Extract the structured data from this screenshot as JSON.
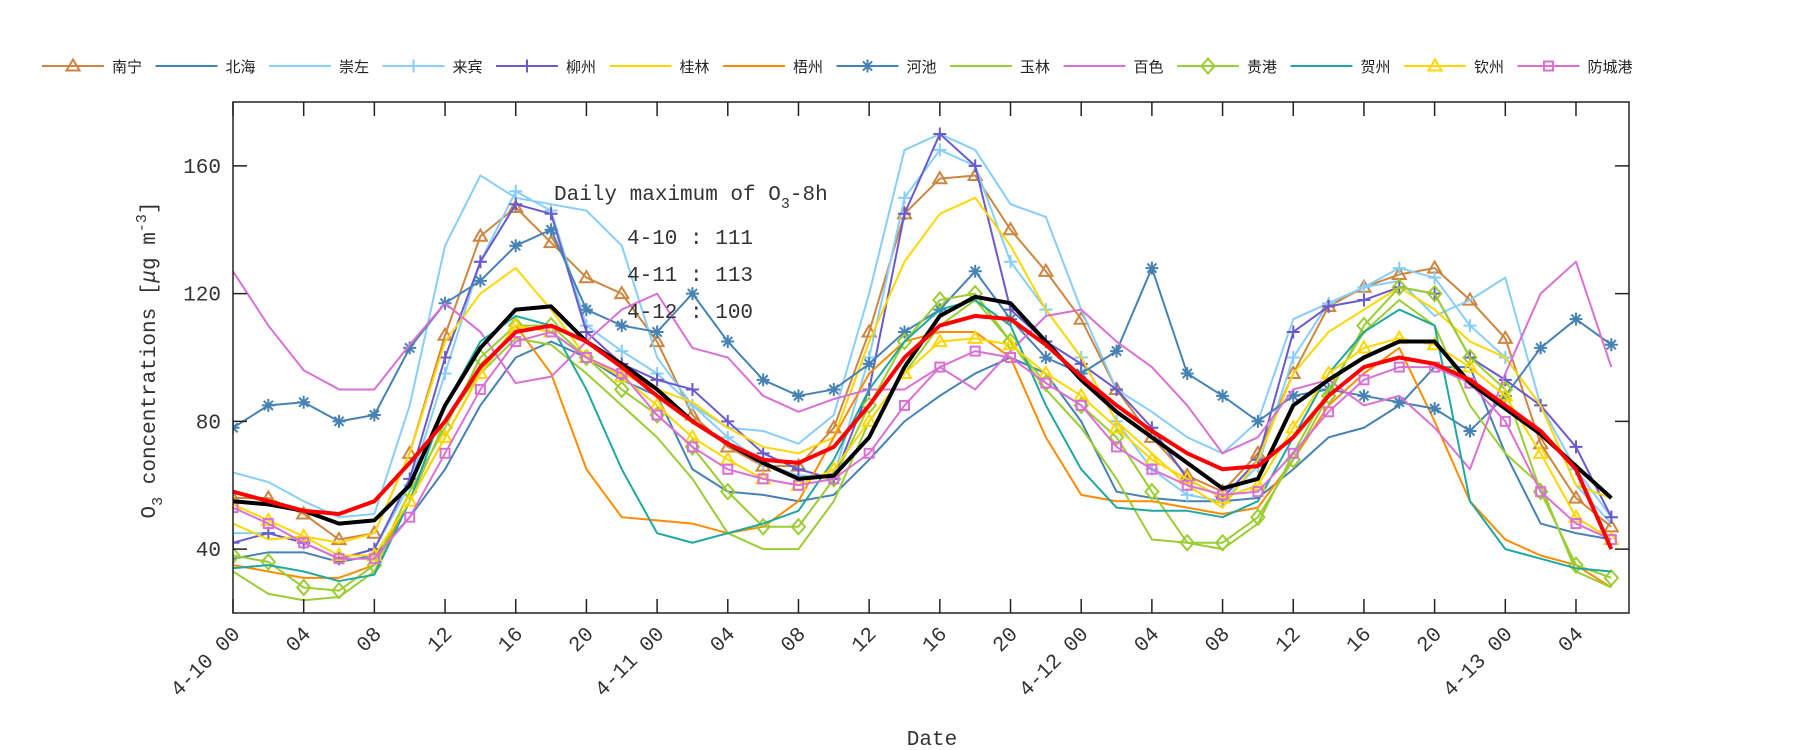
{
  "chart_data": {
    "type": "line",
    "xlabel": "Date",
    "ylabel": "O3 concentrations [μg m-3]",
    "ylabel_parts": {
      "main": "O",
      "sub": "3",
      "rest": " concentrations [",
      "mu": "μ",
      "unit": "g m",
      "sup": "-3",
      "close": "]"
    },
    "xlim": [
      0,
      79
    ],
    "ylim": [
      20,
      180
    ],
    "yticks": [
      40,
      80,
      120,
      160
    ],
    "xticks": [
      0,
      4,
      8,
      12,
      16,
      20,
      24,
      28,
      32,
      36,
      40,
      44,
      48,
      52,
      56,
      60,
      64,
      68,
      72,
      76
    ],
    "xtick_labels": [
      "4-10 00",
      "04",
      "08",
      "12",
      "16",
      "20",
      "4-11 00",
      "04",
      "08",
      "12",
      "16",
      "20",
      "4-12 00",
      "04",
      "08",
      "12",
      "16",
      "20",
      "4-13 00",
      "04"
    ],
    "x_hours": [
      0,
      2,
      4,
      6,
      8,
      10,
      12,
      14,
      16,
      18,
      20,
      22,
      24,
      26,
      28,
      30,
      32,
      34,
      36,
      38,
      40,
      42,
      44,
      46,
      48,
      50,
      52,
      54,
      56,
      58,
      60,
      62,
      64,
      66,
      68,
      70,
      72,
      74,
      76,
      78
    ],
    "grid": false,
    "legend_position": "top",
    "annotation": {
      "title": "Daily maximum of O",
      "title_sub": "3",
      "title_rest": "-8h",
      "lines": [
        "4-10 : 111",
        "4-11 : 113",
        "4-12 : 100"
      ]
    },
    "series": [
      {
        "name": "南宁",
        "color": "#cd853f",
        "marker": "triangle",
        "values": [
          56,
          56,
          51,
          43,
          45,
          70,
          107,
          138,
          147,
          136,
          125,
          120,
          105,
          82,
          72,
          66,
          66,
          78,
          108,
          145,
          156,
          157,
          140,
          127,
          112,
          90,
          75,
          63,
          58,
          70,
          95,
          116,
          122,
          126,
          128,
          118,
          106,
          73,
          56,
          47
        ]
      },
      {
        "name": "北海",
        "color": "#4682b4",
        "marker": "none",
        "values": [
          37,
          39,
          39,
          36,
          38,
          50,
          65,
          85,
          100,
          105,
          100,
          93,
          88,
          65,
          58,
          57,
          55,
          57,
          68,
          80,
          88,
          95,
          100,
          95,
          80,
          58,
          56,
          55,
          55,
          56,
          65,
          75,
          78,
          85,
          97,
          97,
          70,
          48,
          45,
          43
        ]
      },
      {
        "name": "崇左",
        "color": "#87cefa",
        "marker": "none",
        "values": [
          64,
          61,
          55,
          50,
          51,
          85,
          135,
          157,
          150,
          148,
          146,
          135,
          100,
          85,
          78,
          77,
          73,
          82,
          120,
          165,
          170,
          165,
          148,
          144,
          115,
          90,
          83,
          75,
          70,
          80,
          112,
          117,
          122,
          124,
          113,
          118,
          125,
          85,
          60,
          48
        ]
      },
      {
        "name": "来宾",
        "color": "#87cefa",
        "marker": "plus",
        "values": [
          45,
          45,
          42,
          37,
          40,
          60,
          95,
          130,
          152,
          146,
          110,
          102,
          95,
          85,
          75,
          67,
          63,
          63,
          100,
          150,
          165,
          160,
          130,
          115,
          100,
          80,
          65,
          57,
          55,
          66,
          100,
          117,
          122,
          128,
          125,
          110,
          100,
          85,
          65,
          50
        ]
      },
      {
        "name": "柳州",
        "color": "#6a5acd",
        "marker": "plus",
        "values": [
          42,
          45,
          42,
          37,
          40,
          62,
          100,
          130,
          148,
          145,
          108,
          98,
          93,
          90,
          80,
          70,
          65,
          62,
          90,
          145,
          170,
          160,
          115,
          105,
          98,
          90,
          78,
          62,
          56,
          68,
          108,
          116,
          118,
          122,
          120,
          100,
          93,
          85,
          72,
          50
        ]
      },
      {
        "name": "桂林",
        "color": "#ffd700",
        "marker": "none",
        "values": [
          48,
          43,
          44,
          42,
          45,
          70,
          105,
          120,
          128,
          115,
          100,
          95,
          90,
          86,
          78,
          72,
          70,
          75,
          105,
          130,
          145,
          150,
          135,
          115,
          100,
          80,
          70,
          60,
          53,
          68,
          95,
          108,
          115,
          122,
          115,
          105,
          100,
          85,
          60,
          56
        ]
      },
      {
        "name": "梧州",
        "color": "#ff8c00",
        "marker": "none",
        "values": [
          35,
          33,
          31,
          31,
          35,
          55,
          75,
          95,
          110,
          95,
          65,
          50,
          49,
          48,
          45,
          47,
          55,
          75,
          95,
          105,
          108,
          108,
          100,
          75,
          57,
          55,
          55,
          53,
          51,
          53,
          68,
          85,
          95,
          103,
          80,
          55,
          43,
          38,
          35,
          28
        ]
      },
      {
        "name": "河池",
        "color": "#4682b4",
        "marker": "asterisk",
        "values": [
          78,
          85,
          86,
          80,
          82,
          103,
          117,
          124,
          135,
          140,
          115,
          110,
          108,
          120,
          105,
          93,
          88,
          90,
          98,
          108,
          115,
          127,
          112,
          100,
          95,
          102,
          128,
          95,
          88,
          80,
          88,
          90,
          88,
          86,
          84,
          77,
          88,
          103,
          112,
          104
        ]
      },
      {
        "name": "玉林",
        "color": "#9acd32",
        "marker": "none",
        "values": [
          33,
          26,
          24,
          25,
          33,
          55,
          80,
          95,
          106,
          104,
          95,
          85,
          75,
          62,
          45,
          40,
          40,
          55,
          80,
          95,
          110,
          118,
          105,
          90,
          78,
          62,
          43,
          42,
          40,
          48,
          70,
          90,
          108,
          118,
          110,
          85,
          70,
          60,
          33,
          28
        ]
      },
      {
        "name": "百色",
        "color": "#da70d6",
        "marker": "none",
        "values": [
          127,
          110,
          96,
          90,
          90,
          104,
          117,
          108,
          92,
          94,
          105,
          115,
          120,
          103,
          100,
          88,
          83,
          87,
          90,
          90,
          97,
          90,
          102,
          113,
          115,
          105,
          97,
          85,
          70,
          75,
          90,
          93,
          85,
          88,
          78,
          65,
          95,
          120,
          130,
          97
        ]
      },
      {
        "name": "贵港",
        "color": "#9acd32",
        "marker": "diamond",
        "values": [
          38,
          36,
          28,
          27,
          35,
          58,
          78,
          100,
          110,
          110,
          100,
          90,
          82,
          72,
          58,
          47,
          47,
          62,
          85,
          105,
          118,
          120,
          105,
          92,
          85,
          75,
          58,
          42,
          42,
          50,
          68,
          88,
          110,
          122,
          120,
          100,
          90,
          58,
          35,
          31
        ]
      },
      {
        "name": "贺州",
        "color": "#20a8a0",
        "marker": "none",
        "values": [
          34,
          35,
          33,
          30,
          32,
          55,
          85,
          105,
          113,
          110,
          90,
          65,
          45,
          42,
          45,
          48,
          52,
          68,
          90,
          105,
          115,
          118,
          110,
          85,
          65,
          53,
          52,
          52,
          50,
          55,
          75,
          95,
          108,
          115,
          110,
          55,
          40,
          37,
          34,
          33
        ]
      },
      {
        "name": "钦州",
        "color": "#ffd700",
        "marker": "triangle",
        "values": [
          54,
          49,
          44,
          38,
          38,
          55,
          75,
          95,
          110,
          108,
          100,
          94,
          85,
          75,
          68,
          62,
          60,
          65,
          80,
          95,
          105,
          106,
          104,
          95,
          88,
          78,
          68,
          62,
          56,
          60,
          78,
          95,
          103,
          106,
          104,
          97,
          88,
          70,
          50,
          43
        ]
      },
      {
        "name": "防城港",
        "color": "#da70d6",
        "marker": "square",
        "values": [
          53,
          48,
          42,
          37,
          37,
          50,
          70,
          90,
          105,
          108,
          100,
          95,
          82,
          72,
          65,
          62,
          60,
          62,
          70,
          85,
          97,
          102,
          100,
          92,
          85,
          72,
          65,
          60,
          57,
          58,
          70,
          83,
          93,
          97,
          97,
          92,
          80,
          58,
          48,
          43
        ]
      },
      {
        "color": "#000000",
        "marker": "none",
        "width": 4,
        "values": [
          55,
          54,
          52,
          48,
          49,
          60,
          85,
          103,
          115,
          116,
          105,
          98,
          90,
          80,
          73,
          67,
          62,
          63,
          75,
          97,
          113,
          119,
          117,
          105,
          93,
          83,
          75,
          67,
          59,
          62,
          85,
          93,
          100,
          105,
          105,
          92,
          84,
          76,
          66,
          56
        ]
      },
      {
        "color": "#ff0000",
        "marker": "none",
        "width": 4,
        "values": [
          58,
          55,
          52,
          51,
          55,
          67,
          80,
          97,
          108,
          110,
          105,
          97,
          88,
          80,
          73,
          68,
          67,
          72,
          85,
          100,
          110,
          113,
          112,
          104,
          94,
          85,
          77,
          70,
          65,
          66,
          75,
          88,
          97,
          100,
          98,
          93,
          85,
          77,
          65,
          40
        ]
      }
    ]
  }
}
